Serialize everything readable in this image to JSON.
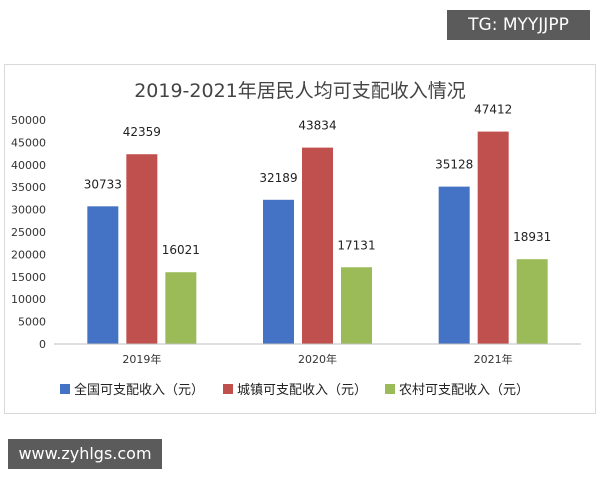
{
  "watermarks": {
    "top": "TG: MYYJJPP",
    "bottom": "www.zyhlgs.com"
  },
  "chart_data": {
    "type": "bar",
    "title": "2019-2021年居民人均可支配收入情况",
    "categories": [
      "2019年",
      "2020年",
      "2021年"
    ],
    "series": [
      {
        "name": "全国可支配收入（元）",
        "values": [
          30733,
          32189,
          35128
        ],
        "color": "#4472c4"
      },
      {
        "name": "城镇可支配收入（元）",
        "values": [
          42359,
          43834,
          47412
        ],
        "color": "#c0504d"
      },
      {
        "name": "农村可支配收入（元）",
        "values": [
          16021,
          17131,
          18931
        ],
        "color": "#9bbb59"
      }
    ],
    "yticks": [
      0,
      5000,
      10000,
      15000,
      20000,
      25000,
      30000,
      35000,
      40000,
      45000,
      50000
    ],
    "ylim": [
      0,
      50000
    ],
    "legend_position": "bottom",
    "grid": false
  }
}
